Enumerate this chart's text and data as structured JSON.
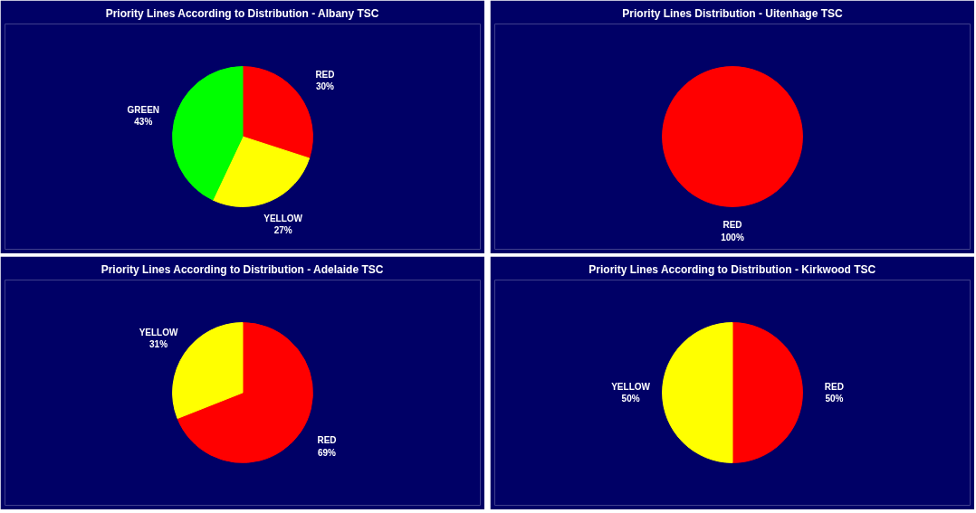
{
  "chart_data": [
    {
      "type": "pie",
      "title": "Priority Lines According to Distribution - Albany TSC",
      "categories": [
        "RED",
        "YELLOW",
        "GREEN"
      ],
      "values": [
        30,
        27,
        43
      ],
      "colors": [
        "#ff0000",
        "#ffff00",
        "#00ff00"
      ],
      "value_labels": [
        "30%",
        "27%",
        "43%"
      ]
    },
    {
      "type": "pie",
      "title": "Priority Lines Distribution - Uitenhage TSC",
      "categories": [
        "RED"
      ],
      "values": [
        100
      ],
      "colors": [
        "#ff0000"
      ],
      "value_labels": [
        "100%"
      ]
    },
    {
      "type": "pie",
      "title": "Priority Lines According to Distribution - Adelaide TSC",
      "categories": [
        "RED",
        "YELLOW"
      ],
      "values": [
        69,
        31
      ],
      "colors": [
        "#ff0000",
        "#ffff00"
      ],
      "value_labels": [
        "69%",
        "31%"
      ]
    },
    {
      "type": "pie",
      "title": "Priority Lines According to Distribution - Kirkwood TSC",
      "categories": [
        "RED",
        "YELLOW"
      ],
      "values": [
        50,
        50
      ],
      "colors": [
        "#ff0000",
        "#ffff00"
      ],
      "value_labels": [
        "50%",
        "50%"
      ]
    }
  ]
}
